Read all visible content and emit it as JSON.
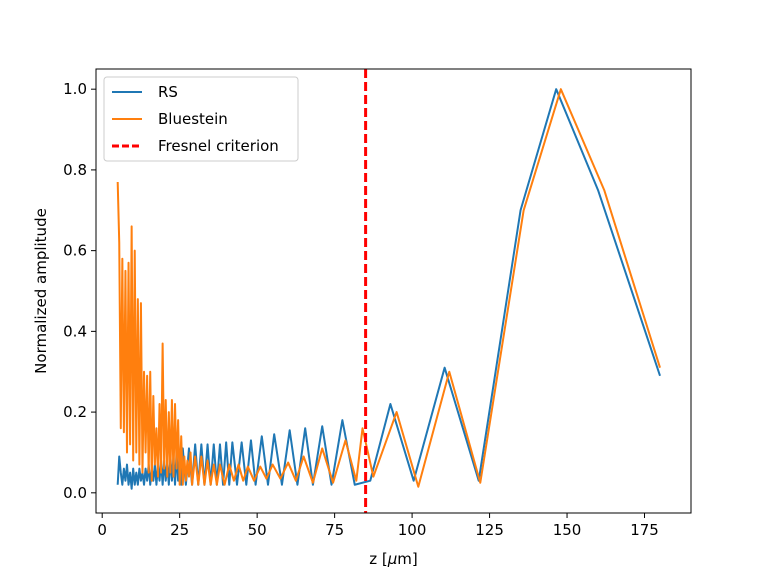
{
  "chart_data": {
    "type": "line",
    "xlabel_prefix": "z [",
    "xlabel_unit": "μ",
    "xlabel_suffix": "m]",
    "ylabel": "Normalized amplitude",
    "xlim": [
      -2,
      190
    ],
    "ylim": [
      -0.05,
      1.05
    ],
    "x_ticks": [
      0,
      25,
      50,
      75,
      100,
      125,
      150,
      175
    ],
    "x_tick_labels": [
      "0",
      "25",
      "50",
      "75",
      "100",
      "125",
      "150",
      "175"
    ],
    "y_ticks": [
      0.0,
      0.2,
      0.4,
      0.6,
      0.8,
      1.0
    ],
    "y_tick_labels": [
      "0.0",
      "0.2",
      "0.4",
      "0.6",
      "0.8",
      "1.0"
    ],
    "grid": false,
    "legend_position": "top-left",
    "vline": {
      "name": "Fresnel criterion",
      "x": 85,
      "color": "#ff0000",
      "style": "dashed"
    },
    "series": [
      {
        "name": "RS",
        "color": "#1f77b4",
        "points": [
          [
            5,
            0.02
          ],
          [
            5.5,
            0.09
          ],
          [
            6,
            0.05
          ],
          [
            6.5,
            0.02
          ],
          [
            7,
            0.06
          ],
          [
            7.5,
            0.03
          ],
          [
            8,
            0.07
          ],
          [
            8.5,
            0.02
          ],
          [
            9,
            0.05
          ],
          [
            9.5,
            0.01
          ],
          [
            10,
            0.06
          ],
          [
            10.5,
            0.02
          ],
          [
            11,
            0.05
          ],
          [
            11.5,
            0.02
          ],
          [
            12,
            0.06
          ],
          [
            12.5,
            0.03
          ],
          [
            13,
            0.05
          ],
          [
            13.5,
            0.02
          ],
          [
            14,
            0.06
          ],
          [
            14.5,
            0.03
          ],
          [
            15,
            0.07
          ],
          [
            15.5,
            0.02
          ],
          [
            16,
            0.06
          ],
          [
            16.5,
            0.03
          ],
          [
            17,
            0.07
          ],
          [
            17.5,
            0.02
          ],
          [
            18,
            0.07
          ],
          [
            18.5,
            0.03
          ],
          [
            19,
            0.08
          ],
          [
            19.5,
            0.02
          ],
          [
            20,
            0.08
          ],
          [
            20.5,
            0.03
          ],
          [
            21,
            0.08
          ],
          [
            21.5,
            0.02
          ],
          [
            22,
            0.09
          ],
          [
            22.5,
            0.03
          ],
          [
            23,
            0.09
          ],
          [
            23.5,
            0.02
          ],
          [
            24,
            0.1
          ],
          [
            24.5,
            0.03
          ],
          [
            25,
            0.1
          ],
          [
            25.5,
            0.02
          ],
          [
            26,
            0.11
          ],
          [
            27,
            0.02
          ],
          [
            28,
            0.11
          ],
          [
            29,
            0.02
          ],
          [
            30,
            0.12
          ],
          [
            31,
            0.02
          ],
          [
            32,
            0.12
          ],
          [
            33,
            0.02
          ],
          [
            34,
            0.12
          ],
          [
            35,
            0.02
          ],
          [
            36,
            0.12
          ],
          [
            37,
            0.02
          ],
          [
            38,
            0.12
          ],
          [
            39,
            0.02
          ],
          [
            40,
            0.125
          ],
          [
            41,
            0.02
          ],
          [
            42,
            0.125
          ],
          [
            43.5,
            0.02
          ],
          [
            45,
            0.125
          ],
          [
            46.5,
            0.02
          ],
          [
            48,
            0.13
          ],
          [
            49.5,
            0.02
          ],
          [
            51.5,
            0.14
          ],
          [
            53.5,
            0.02
          ],
          [
            55.5,
            0.145
          ],
          [
            58,
            0.02
          ],
          [
            60.5,
            0.155
          ],
          [
            63,
            0.02
          ],
          [
            65.5,
            0.16
          ],
          [
            68,
            0.02
          ],
          [
            71,
            0.165
          ],
          [
            74,
            0.02
          ],
          [
            77.5,
            0.18
          ],
          [
            81.5,
            0.02
          ],
          [
            86.5,
            0.03
          ],
          [
            93,
            0.22
          ],
          [
            100.5,
            0.03
          ],
          [
            110.5,
            0.31
          ],
          [
            121.5,
            0.03
          ],
          [
            135,
            0.7
          ],
          [
            146.5,
            1.0
          ],
          [
            160,
            0.75
          ],
          [
            180,
            0.29
          ]
        ]
      },
      {
        "name": "Bluestein",
        "color": "#ff7f0e",
        "points": [
          [
            5,
            0.77
          ],
          [
            5.5,
            0.62
          ],
          [
            6,
            0.16
          ],
          [
            6.5,
            0.58
          ],
          [
            7,
            0.15
          ],
          [
            7.5,
            0.55
          ],
          [
            8,
            0.1
          ],
          [
            8.5,
            0.57
          ],
          [
            9,
            0.12
          ],
          [
            9.5,
            0.66
          ],
          [
            10,
            0.08
          ],
          [
            10.5,
            0.6
          ],
          [
            11,
            0.1
          ],
          [
            11.5,
            0.48
          ],
          [
            12,
            0.07
          ],
          [
            12.5,
            0.47
          ],
          [
            13,
            0.05
          ],
          [
            13.5,
            0.3
          ],
          [
            14,
            0.1
          ],
          [
            14.5,
            0.29
          ],
          [
            15,
            0.05
          ],
          [
            15.5,
            0.3
          ],
          [
            16,
            0.03
          ],
          [
            16.5,
            0.24
          ],
          [
            17,
            0.07
          ],
          [
            17.5,
            0.16
          ],
          [
            18,
            0.04
          ],
          [
            18.5,
            0.22
          ],
          [
            19,
            0.05
          ],
          [
            19.5,
            0.37
          ],
          [
            20,
            0.06
          ],
          [
            20.5,
            0.23
          ],
          [
            21,
            0.04
          ],
          [
            21.5,
            0.2
          ],
          [
            22,
            0.05
          ],
          [
            22.5,
            0.23
          ],
          [
            23,
            0.04
          ],
          [
            23.5,
            0.22
          ],
          [
            24,
            0.06
          ],
          [
            24.5,
            0.18
          ],
          [
            25,
            0.02
          ],
          [
            25.5,
            0.14
          ],
          [
            26,
            0.02
          ],
          [
            26.5,
            0.09
          ],
          [
            27,
            0.03
          ],
          [
            27.5,
            0.08
          ],
          [
            28,
            0.04
          ],
          [
            28.5,
            0.1
          ],
          [
            29,
            0.02
          ],
          [
            30,
            0.09
          ],
          [
            31,
            0.02
          ],
          [
            32,
            0.09
          ],
          [
            33,
            0.02
          ],
          [
            34,
            0.08
          ],
          [
            35,
            0.02
          ],
          [
            36,
            0.07
          ],
          [
            37,
            0.02
          ],
          [
            38,
            0.07
          ],
          [
            39.5,
            0.02
          ],
          [
            41,
            0.07
          ],
          [
            42.5,
            0.03
          ],
          [
            44,
            0.07
          ],
          [
            45.5,
            0.03
          ],
          [
            47,
            0.065
          ],
          [
            49,
            0.03
          ],
          [
            51,
            0.065
          ],
          [
            53,
            0.035
          ],
          [
            55,
            0.07
          ],
          [
            57.5,
            0.035
          ],
          [
            60,
            0.075
          ],
          [
            62.5,
            0.03
          ],
          [
            65,
            0.09
          ],
          [
            68,
            0.025
          ],
          [
            71,
            0.11
          ],
          [
            74.5,
            0.025
          ],
          [
            78.5,
            0.13
          ],
          [
            82,
            0.03
          ],
          [
            84,
            0.16
          ],
          [
            87.5,
            0.04
          ],
          [
            95,
            0.2
          ],
          [
            102,
            0.015
          ],
          [
            112,
            0.3
          ],
          [
            122,
            0.025
          ],
          [
            136,
            0.7
          ],
          [
            148,
            1.0
          ],
          [
            162,
            0.75
          ],
          [
            180,
            0.31
          ]
        ]
      }
    ]
  }
}
